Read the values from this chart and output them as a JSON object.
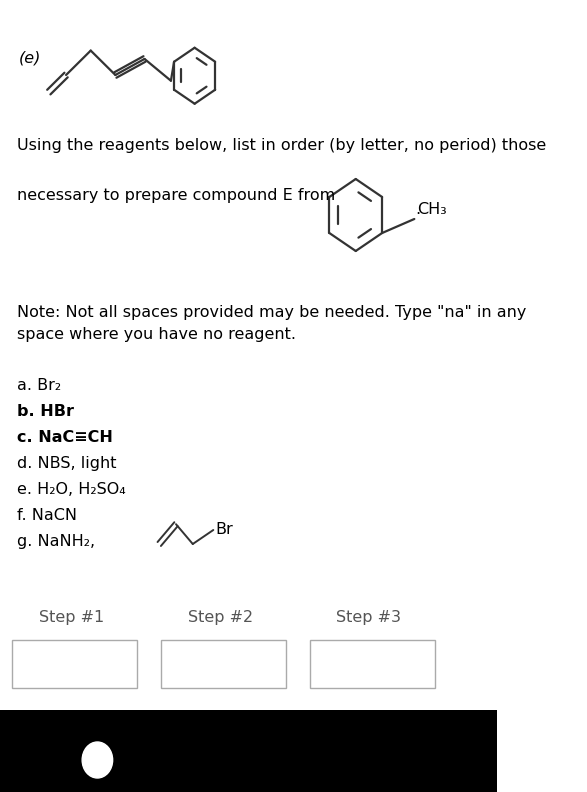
{
  "bg_color": "#ffffff",
  "text_color": "#000000",
  "label_e": "(e)",
  "main_text_line1": "Using the reagents below, list in order (by letter, no period) those",
  "main_text_line2": "necessary to prepare compound E from",
  "dot_after_structure": ".",
  "note_text": "Note: Not all spaces provided may be needed. Type \"na\" in any\nspace where you have no reagent.",
  "step_labels": [
    "Step #1",
    "Step #2",
    "Step #3"
  ],
  "font_size_main": 11.5
}
